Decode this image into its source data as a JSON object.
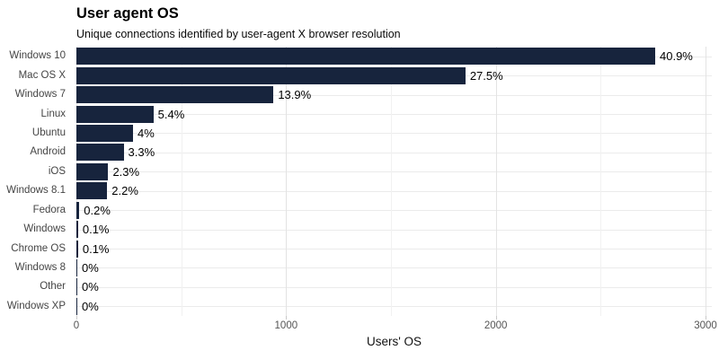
{
  "chart_data": {
    "type": "bar",
    "orientation": "horizontal",
    "title": "User agent OS",
    "subtitle": "Unique connections identified by user-agent X browser resolution",
    "xlabel": "Users' OS",
    "ylabel": "",
    "categories": [
      "Windows 10",
      "Mac OS X",
      "Windows 7",
      "Linux",
      "Ubuntu",
      "Android",
      "iOS",
      "Windows 8.1",
      "Fedora",
      "Windows",
      "Chrome OS",
      "Windows 8",
      "Other",
      "Windows XP"
    ],
    "values": [
      2760,
      1855,
      940,
      367,
      270,
      225,
      152,
      147,
      14,
      8,
      8,
      4,
      4,
      4
    ],
    "percent_labels": [
      "40.9%",
      "27.5%",
      "13.9%",
      "5.4%",
      "4%",
      "3.3%",
      "2.3%",
      "2.2%",
      "0.2%",
      "0.1%",
      "0.1%",
      "0%",
      "0%",
      "0%"
    ],
    "x_ticks": [
      0,
      1000,
      2000,
      3000
    ],
    "x_minor_ticks": [
      500,
      1500,
      2500
    ],
    "xlim": [
      0,
      3030
    ],
    "grid": true,
    "legend": false,
    "colors": {
      "bar": "#17243D",
      "grid_major": "#e3e3e3",
      "grid_minor": "#f1f1f1",
      "grid_horizontal": "#ebebeb",
      "tick_mark": "#c9c9c9",
      "tick_label": "#555555",
      "category_label": "#444444",
      "value_label": "#000000",
      "background": "#ffffff"
    }
  }
}
